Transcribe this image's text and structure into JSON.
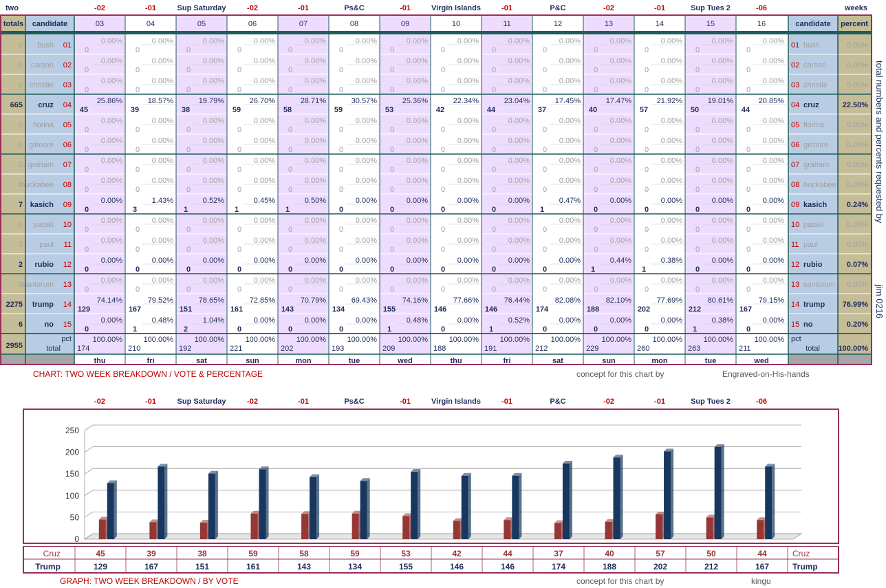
{
  "top_row": {
    "left_label": "two",
    "right_label": "weeks",
    "week_labels": [
      "-02",
      "-01",
      "Sup Saturday",
      "-02",
      "-01",
      "Ps&C",
      "-01",
      "Virgin Islands",
      "-01",
      "P&C",
      "-02",
      "-01",
      "Sup Tues 2",
      "-06"
    ]
  },
  "table_header": {
    "totals": "totals",
    "candidate": "candidate",
    "candidate_right": "candidate",
    "percent": "percent",
    "days": [
      "03",
      "04",
      "05",
      "06",
      "07",
      "08",
      "09",
      "10",
      "11",
      "12",
      "13",
      "14",
      "15",
      "16"
    ]
  },
  "candidates": [
    {
      "name": "bush",
      "num": "01",
      "total": "0",
      "active": false,
      "counts": [
        0,
        0,
        0,
        0,
        0,
        0,
        0,
        0,
        0,
        0,
        0,
        0,
        0,
        0
      ],
      "pcts": [
        "0.00%",
        "0.00%",
        "0.00%",
        "0.00%",
        "0.00%",
        "0.00%",
        "0.00%",
        "0.00%",
        "0.00%",
        "0.00%",
        "0.00%",
        "0.00%",
        "0.00%",
        "0.00%"
      ],
      "percent": "0.00%"
    },
    {
      "name": "carson",
      "num": "02",
      "total": "0",
      "active": false,
      "counts": [
        0,
        0,
        0,
        0,
        0,
        0,
        0,
        0,
        0,
        0,
        0,
        0,
        0,
        0
      ],
      "pcts": [
        "0.00%",
        "0.00%",
        "0.00%",
        "0.00%",
        "0.00%",
        "0.00%",
        "0.00%",
        "0.00%",
        "0.00%",
        "0.00%",
        "0.00%",
        "0.00%",
        "0.00%",
        "0.00%"
      ],
      "percent": "0.00%"
    },
    {
      "name": "christie",
      "num": "03",
      "total": "0",
      "active": false,
      "counts": [
        0,
        0,
        0,
        0,
        0,
        0,
        0,
        0,
        0,
        0,
        0,
        0,
        0,
        0
      ],
      "pcts": [
        "0.00%",
        "0.00%",
        "0.00%",
        "0.00%",
        "0.00%",
        "0.00%",
        "0.00%",
        "0.00%",
        "0.00%",
        "0.00%",
        "0.00%",
        "0.00%",
        "0.00%",
        "0.00%"
      ],
      "percent": "0.00%"
    },
    {
      "name": "cruz",
      "num": "04",
      "total": "665",
      "active": true,
      "counts": [
        45,
        39,
        38,
        59,
        58,
        59,
        53,
        42,
        44,
        37,
        40,
        57,
        50,
        44
      ],
      "pcts": [
        "25.86%",
        "18.57%",
        "19.79%",
        "26.70%",
        "28.71%",
        "30.57%",
        "25.36%",
        "22.34%",
        "23.04%",
        "17.45%",
        "17.47%",
        "21.92%",
        "19.01%",
        "20.85%"
      ],
      "percent": "22.50%"
    },
    {
      "name": "fiorina",
      "num": "05",
      "total": "0",
      "active": false,
      "counts": [
        0,
        0,
        0,
        0,
        0,
        0,
        0,
        0,
        0,
        0,
        0,
        0,
        0,
        0
      ],
      "pcts": [
        "0.00%",
        "0.00%",
        "0.00%",
        "0.00%",
        "0.00%",
        "0.00%",
        "0.00%",
        "0.00%",
        "0.00%",
        "0.00%",
        "0.00%",
        "0.00%",
        "0.00%",
        "0.00%"
      ],
      "percent": "0.00%"
    },
    {
      "name": "gilmore",
      "num": "06",
      "total": "0",
      "active": false,
      "counts": [
        0,
        0,
        0,
        0,
        0,
        0,
        0,
        0,
        0,
        0,
        0,
        0,
        0,
        0
      ],
      "pcts": [
        "0.00%",
        "0.00%",
        "0.00%",
        "0.00%",
        "0.00%",
        "0.00%",
        "0.00%",
        "0.00%",
        "0.00%",
        "0.00%",
        "0.00%",
        "0.00%",
        "0.00%",
        "0.00%"
      ],
      "percent": "0.00%"
    },
    {
      "name": "graham",
      "num": "07",
      "total": "0",
      "active": false,
      "counts": [
        0,
        0,
        0,
        0,
        0,
        0,
        0,
        0,
        0,
        0,
        0,
        0,
        0,
        0
      ],
      "pcts": [
        "0.00%",
        "0.00%",
        "0.00%",
        "0.00%",
        "0.00%",
        "0.00%",
        "0.00%",
        "0.00%",
        "0.00%",
        "0.00%",
        "0.00%",
        "0.00%",
        "0.00%",
        "0.00%"
      ],
      "percent": "0.00%"
    },
    {
      "name": "huckabee",
      "num": "08",
      "total": "0",
      "active": false,
      "counts": [
        0,
        0,
        0,
        0,
        0,
        0,
        0,
        0,
        0,
        0,
        0,
        0,
        0,
        0
      ],
      "pcts": [
        "0.00%",
        "0.00%",
        "0.00%",
        "0.00%",
        "0.00%",
        "0.00%",
        "0.00%",
        "0.00%",
        "0.00%",
        "0.00%",
        "0.00%",
        "0.00%",
        "0.00%",
        "0.00%"
      ],
      "percent": "0.00%"
    },
    {
      "name": "kasich",
      "num": "09",
      "total": "7",
      "active": true,
      "counts": [
        0,
        3,
        1,
        1,
        1,
        0,
        0,
        0,
        0,
        1,
        0,
        0,
        0,
        0
      ],
      "pcts": [
        "0.00%",
        "1.43%",
        "0.52%",
        "0.45%",
        "0.50%",
        "0.00%",
        "0.00%",
        "0.00%",
        "0.00%",
        "0.47%",
        "0.00%",
        "0.00%",
        "0.00%",
        "0.00%"
      ],
      "percent": "0.24%"
    },
    {
      "name": "pataki",
      "num": "10",
      "total": "0",
      "active": false,
      "counts": [
        0,
        0,
        0,
        0,
        0,
        0,
        0,
        0,
        0,
        0,
        0,
        0,
        0,
        0
      ],
      "pcts": [
        "0.00%",
        "0.00%",
        "0.00%",
        "0.00%",
        "0.00%",
        "0.00%",
        "0.00%",
        "0.00%",
        "0.00%",
        "0.00%",
        "0.00%",
        "0.00%",
        "0.00%",
        "0.00%"
      ],
      "percent": "0.00%"
    },
    {
      "name": "paul",
      "num": "11",
      "total": "0",
      "active": false,
      "counts": [
        0,
        0,
        0,
        0,
        0,
        0,
        0,
        0,
        0,
        0,
        0,
        0,
        0,
        0
      ],
      "pcts": [
        "0.00%",
        "0.00%",
        "0.00%",
        "0.00%",
        "0.00%",
        "0.00%",
        "0.00%",
        "0.00%",
        "0.00%",
        "0.00%",
        "0.00%",
        "0.00%",
        "0.00%",
        "0.00%"
      ],
      "percent": "0.00%"
    },
    {
      "name": "rubio",
      "num": "12",
      "total": "2",
      "active": true,
      "counts": [
        0,
        0,
        0,
        0,
        0,
        0,
        0,
        0,
        0,
        0,
        1,
        1,
        0,
        0
      ],
      "pcts": [
        "0.00%",
        "0.00%",
        "0.00%",
        "0.00%",
        "0.00%",
        "0.00%",
        "0.00%",
        "0.00%",
        "0.00%",
        "0.00%",
        "0.44%",
        "0.38%",
        "0.00%",
        "0.00%"
      ],
      "percent": "0.07%"
    },
    {
      "name": "santorum",
      "num": "13",
      "total": "0",
      "active": false,
      "counts": [
        0,
        0,
        0,
        0,
        0,
        0,
        0,
        0,
        0,
        0,
        0,
        0,
        0,
        0
      ],
      "pcts": [
        "0.00%",
        "0.00%",
        "0.00%",
        "0.00%",
        "0.00%",
        "0.00%",
        "0.00%",
        "0.00%",
        "0.00%",
        "0.00%",
        "0.00%",
        "0.00%",
        "0.00%",
        "0.00%"
      ],
      "percent": "0.00%"
    },
    {
      "name": "trump",
      "num": "14",
      "total": "2275",
      "active": true,
      "counts": [
        129,
        167,
        151,
        161,
        143,
        134,
        155,
        146,
        146,
        174,
        188,
        202,
        212,
        167
      ],
      "pcts": [
        "74.14%",
        "79.52%",
        "78.65%",
        "72.85%",
        "70.79%",
        "69.43%",
        "74.16%",
        "77.66%",
        "76.44%",
        "82.08%",
        "82.10%",
        "77.69%",
        "80.61%",
        "79.15%"
      ],
      "percent": "76.99%"
    },
    {
      "name": "no",
      "num": "15",
      "total": "6",
      "active": true,
      "counts": [
        0,
        1,
        2,
        0,
        0,
        0,
        1,
        0,
        1,
        0,
        0,
        0,
        1,
        0
      ],
      "pcts": [
        "0.00%",
        "0.48%",
        "1.04%",
        "0.00%",
        "0.00%",
        "0.00%",
        "0.48%",
        "0.00%",
        "0.52%",
        "0.00%",
        "0.00%",
        "0.00%",
        "0.38%",
        "0.00%"
      ],
      "percent": "0.20%"
    }
  ],
  "totals_row": {
    "grand_total": "2955",
    "pct_label": "pct",
    "total_label": "total",
    "counts": [
      174,
      210,
      192,
      221,
      202,
      193,
      209,
      188,
      191,
      212,
      229,
      260,
      263,
      211
    ],
    "pct": "100.00%",
    "percent": "100.00%"
  },
  "weekdays": [
    "thu",
    "fri",
    "sat",
    "sun",
    "mon",
    "tue",
    "wed",
    "thu",
    "fri",
    "sat",
    "sun",
    "mon",
    "tue",
    "wed"
  ],
  "side_text": {
    "vertical": "total numbers and percents requested by",
    "author": "jim 0216"
  },
  "captions": {
    "chart_title": "CHART: TWO WEEK BREAKDOWN / VOTE & PERCENTAGE",
    "chart_concept": "concept for this chart by",
    "chart_credit": "Engraved-on-His-hands",
    "graph_title": "GRAPH: TWO WEEK BREAKDOWN / BY VOTE",
    "graph_concept": "concept for this chart by",
    "graph_credit": "kingu"
  },
  "colors": {
    "totals_bg": "#c4bd97",
    "candidate_bg": "#b8cce4",
    "purple_bg": "#eedcff",
    "frame": "#9b2d5a",
    "teal": "#1f5c5c",
    "cruz_bar": "#953735",
    "trump_bar": "#17375e"
  },
  "chart_data": {
    "type": "bar",
    "categories": [
      "-02",
      "-01",
      "Sup Saturday",
      "-02",
      "-01",
      "Ps&C",
      "-01",
      "Virgin Islands",
      "-01",
      "P&C",
      "-02",
      "-01",
      "Sup Tues 2",
      "-06"
    ],
    "series": [
      {
        "name": "Cruz",
        "values": [
          45,
          39,
          38,
          59,
          58,
          59,
          53,
          42,
          44,
          37,
          40,
          57,
          50,
          44
        ]
      },
      {
        "name": "Trump",
        "values": [
          129,
          167,
          151,
          161,
          143,
          134,
          155,
          146,
          146,
          174,
          188,
          202,
          212,
          167
        ]
      }
    ],
    "yticks": [
      "0",
      "50",
      "100",
      "150",
      "200",
      "250"
    ],
    "ylim": [
      0,
      250
    ],
    "grid": true,
    "legend": "none"
  }
}
